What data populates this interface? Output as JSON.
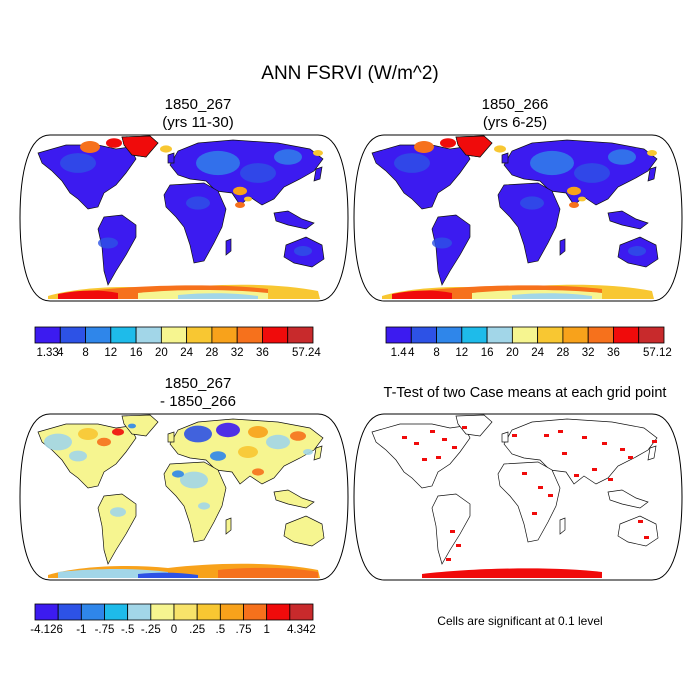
{
  "title": "ANN FSRVI (W/m^2)",
  "panels": [
    {
      "title1": "1850_267",
      "title2": "(yrs 11-30)",
      "colorbar": {
        "labels": [
          "1.33",
          "4",
          "8",
          "12",
          "16",
          "20",
          "24",
          "28",
          "32",
          "36",
          "57.24"
        ],
        "colors": [
          "#3c1bf0",
          "#2d52e6",
          "#2f86ea",
          "#1ebbea",
          "#a2d6e8",
          "#f6f590",
          "#f8c732",
          "#f8a21b",
          "#f6711c",
          "#f00b0b",
          "#c82a2c"
        ]
      }
    },
    {
      "title1": "1850_266",
      "title2": "(yrs 6-25)",
      "colorbar": {
        "labels": [
          "1.4",
          "4",
          "8",
          "12",
          "16",
          "20",
          "24",
          "28",
          "32",
          "36",
          "57.12"
        ],
        "colors": [
          "#3c1bf0",
          "#2d52e6",
          "#2f86ea",
          "#1ebbea",
          "#a2d6e8",
          "#f6f590",
          "#f8c732",
          "#f8a21b",
          "#f6711c",
          "#f00b0b",
          "#c82a2c"
        ]
      }
    },
    {
      "title1": "1850_267",
      "title2": "- 1850_266",
      "colorbar": {
        "labels": [
          "-4.126",
          "-1",
          "-.75",
          "-.5",
          "-.25",
          "0",
          ".25",
          ".5",
          ".75",
          "1",
          "4.342"
        ],
        "colors": [
          "#3c1bf0",
          "#2d52e6",
          "#2f86ea",
          "#1ebbea",
          "#a2d6e8",
          "#f6f590",
          "#f8e36a",
          "#f8c732",
          "#f8a21b",
          "#f6711c",
          "#f00b0b",
          "#c82a2c"
        ]
      }
    },
    {
      "title1": "T-Test of two Case means at each grid point",
      "note": "Cells are significant at 0.1 level"
    }
  ]
}
